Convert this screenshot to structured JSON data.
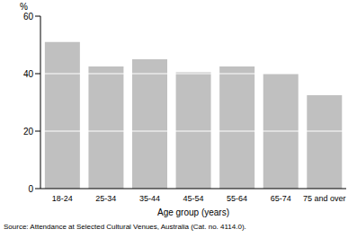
{
  "chart_data": {
    "type": "bar",
    "categories": [
      "18-24",
      "25-34",
      "35-44",
      "45-54",
      "55-64",
      "65-74",
      "75 and over"
    ],
    "values": [
      51,
      42.5,
      45,
      40.5,
      42.5,
      40,
      32.5
    ],
    "color": "#c0c0c0",
    "ylim": [
      0,
      60
    ],
    "yticks": [
      0,
      20,
      40,
      60
    ],
    "grid": true,
    "x_label": "Age group (years)",
    "y_label": "%",
    "annotation": "Source: Attendance at Selected Cultural Venues, Australia (Cat. no. 4114.0)."
  }
}
